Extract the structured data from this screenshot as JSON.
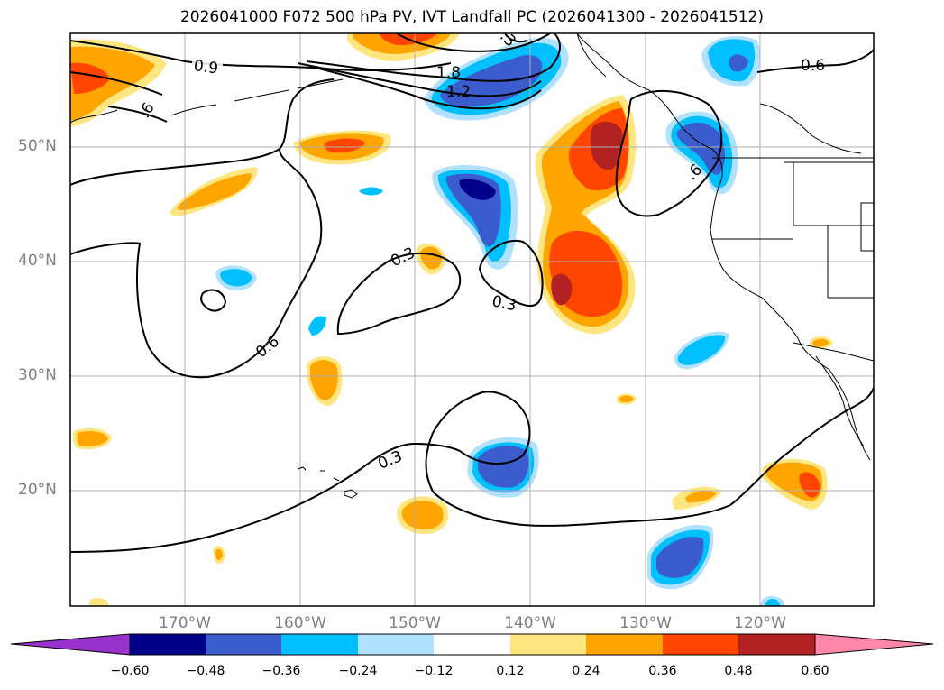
{
  "title": "2026041000 F072 500 hPa PV, IVT Landfall PC (2026041300 - 2026041512)",
  "map": {
    "projection": "plate-carree",
    "lon_range": [
      -180,
      -110
    ],
    "lat_range": [
      10,
      60
    ],
    "grid": true,
    "lon_labels": [
      "170°W",
      "160°W",
      "150°W",
      "140°W",
      "130°W",
      "120°W"
    ],
    "lat_labels": [
      "50°N",
      "40°N",
      "30°N",
      "20°N"
    ],
    "contour_labels": [
      "0.9",
      ".6",
      "1.8",
      "1.2",
      ".3",
      "0.6",
      "0.3",
      "0.3",
      "0.6",
      "0.3",
      ".6"
    ]
  },
  "colorbar": {
    "ticks": [
      "−0.60",
      "−0.48",
      "−0.36",
      "−0.24",
      "−0.12",
      "0.12",
      "0.24",
      "0.36",
      "0.48",
      "0.60"
    ],
    "colors": [
      "#9932cc",
      "#00008b",
      "#3a5ccc",
      "#00bfff",
      "#b0e2ff",
      "#ffffff",
      "#ffe680",
      "#ffa500",
      "#ff4500",
      "#b22222",
      "#ff88aa"
    ]
  }
}
